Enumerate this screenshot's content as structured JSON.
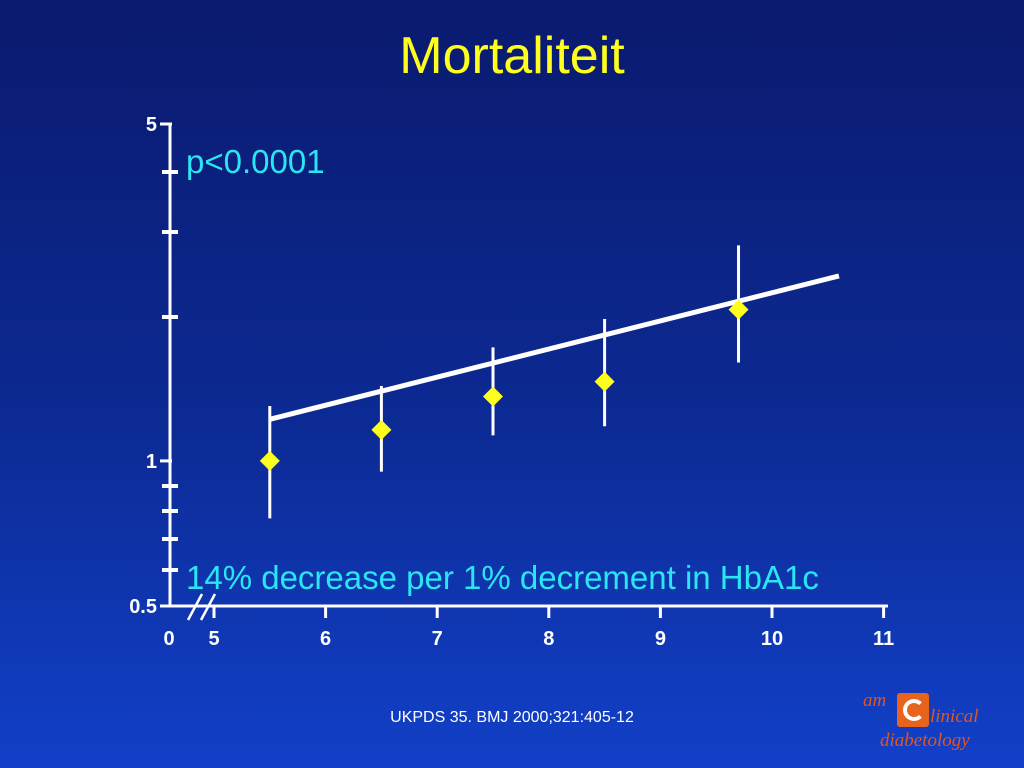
{
  "title": "Mortaliteit",
  "citation": "UKPDS 35. BMJ 2000;321:405-12",
  "logo": {
    "am": "am",
    "clinical": "linical",
    "diabetology": "diabetology"
  },
  "colors": {
    "title": "#ffff1e",
    "annotation": "#29e6f2",
    "marker": "#ffff1e",
    "line": "#ffffff"
  },
  "chart_data": {
    "type": "scatter",
    "y_scale": "log",
    "ylim": [
      0.5,
      5
    ],
    "xlim": [
      5,
      11
    ],
    "x_axis_break_label": "0",
    "x_ticks": [
      5,
      6,
      7,
      8,
      9,
      10,
      11
    ],
    "x_tick_labels": [
      "5",
      "6",
      "7",
      "8",
      "9",
      "10",
      "11"
    ],
    "y_tick_labels": [
      {
        "value": 5,
        "label": "5"
      },
      {
        "value": 1,
        "label": "1"
      },
      {
        "value": 0.5,
        "label": "0.5"
      }
    ],
    "points": [
      {
        "x": 5.5,
        "y": 1.0,
        "lower": 0.76,
        "upper": 1.3
      },
      {
        "x": 6.5,
        "y": 1.16,
        "lower": 0.95,
        "upper": 1.43
      },
      {
        "x": 7.5,
        "y": 1.36,
        "lower": 1.13,
        "upper": 1.72
      },
      {
        "x": 8.5,
        "y": 1.46,
        "lower": 1.18,
        "upper": 1.97
      },
      {
        "x": 9.7,
        "y": 2.06,
        "lower": 1.6,
        "upper": 2.8
      }
    ],
    "trend_line": {
      "x": [
        5.5,
        10.6
      ],
      "y": [
        1.22,
        2.42
      ]
    },
    "annotations": [
      {
        "text": "p<0.0001"
      },
      {
        "text": "14% decrease per 1% decrement in HbA1c"
      }
    ]
  }
}
